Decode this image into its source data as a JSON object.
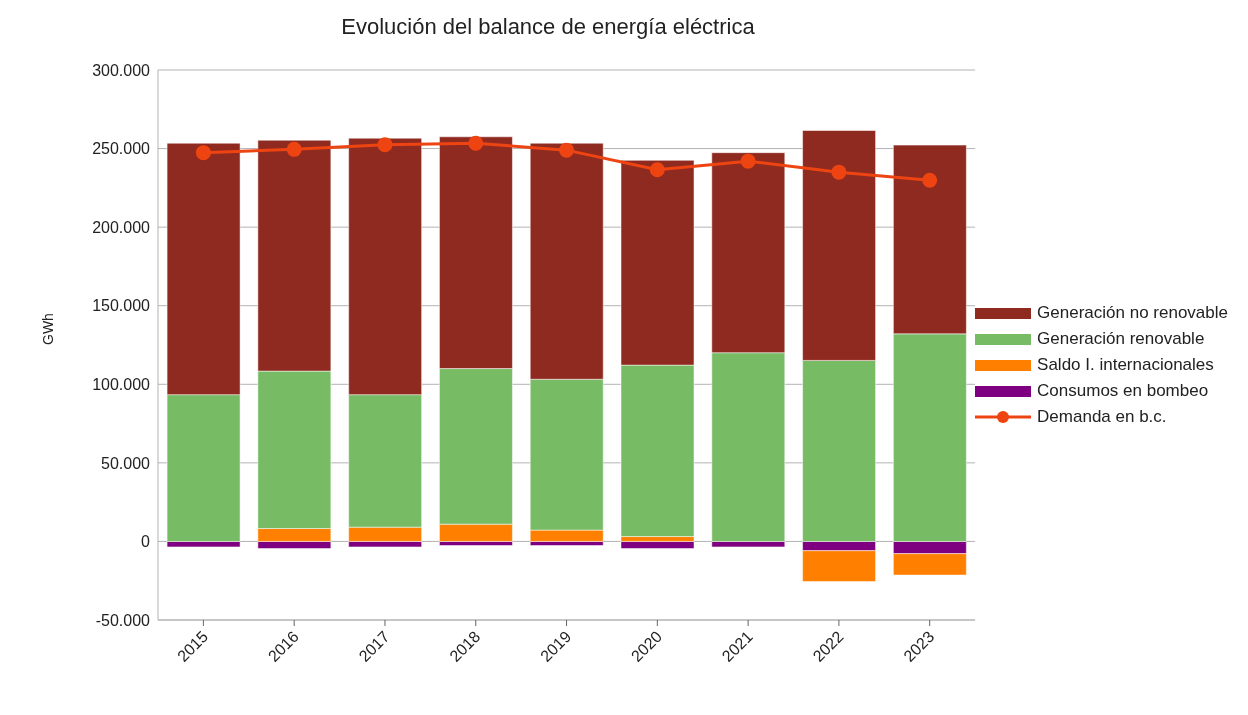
{
  "chart_data": {
    "type": "bar",
    "stacked": true,
    "title": "Evolución del balance de energía eléctrica",
    "ylabel": "GWh",
    "categories": [
      "2015",
      "2016",
      "2017",
      "2018",
      "2019",
      "2020",
      "2021",
      "2022",
      "2023"
    ],
    "series": [
      {
        "name": "Consumos en bombeo",
        "color": "#7e0080",
        "values": [
          -3500,
          -4500,
          -3500,
          -2600,
          -2600,
          -4500,
          -3500,
          -5900,
          -7800
        ]
      },
      {
        "name": "Saldo I. internacionales",
        "color": "#ff8000",
        "values": [
          0,
          8200,
          9100,
          11000,
          7200,
          3100,
          0,
          -19600,
          -13600
        ]
      },
      {
        "name": "Generación renovable",
        "color": "#77bc65",
        "values": [
          93400,
          100200,
          84300,
          99000,
          96000,
          109100,
          120100,
          115200,
          132100
        ]
      },
      {
        "name": "Generación no renovable",
        "color": "#8f2a20",
        "values": [
          160000,
          146900,
          163200,
          147500,
          150200,
          130300,
          127300,
          146300,
          120100
        ]
      },
      {
        "name": "Demanda en b.c.",
        "type": "line",
        "color": "#ee4411",
        "values": [
          247400,
          249500,
          252500,
          253400,
          249000,
          236500,
          242000,
          235000,
          229800
        ]
      }
    ],
    "ylim": [
      -50000,
      300000
    ],
    "yticks": [
      {
        "value": -50000,
        "label": "-50.000"
      },
      {
        "value": 0,
        "label": "0"
      },
      {
        "value": 50000,
        "label": "50.000"
      },
      {
        "value": 100000,
        "label": "100.000"
      },
      {
        "value": 150000,
        "label": "150.000"
      },
      {
        "value": 200000,
        "label": "200.000"
      },
      {
        "value": 250000,
        "label": "250.000"
      },
      {
        "value": 300000,
        "label": "300.000"
      }
    ],
    "grid": "y",
    "legend": "right",
    "marker": "circle"
  }
}
